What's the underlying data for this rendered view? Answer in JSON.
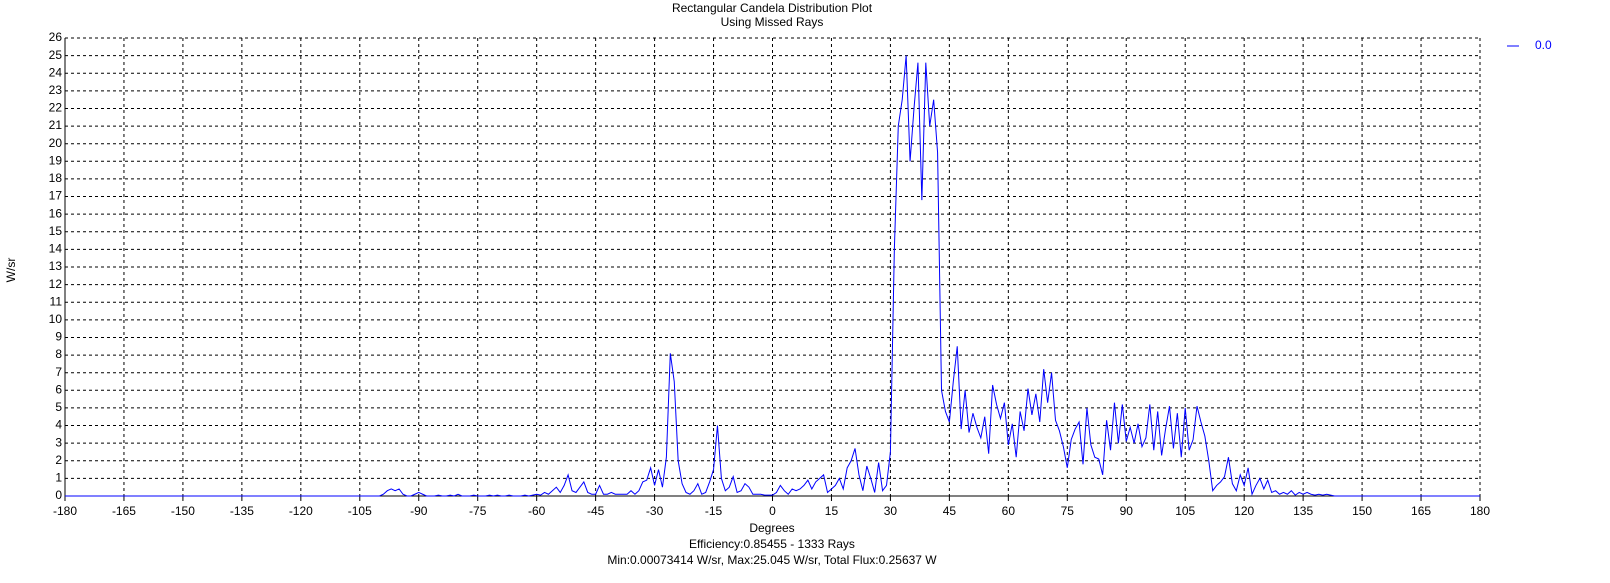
{
  "chart_data": {
    "type": "line",
    "title": "Rectangular Candela Distribution Plot",
    "subtitle": "Using Missed Rays",
    "x_label": "Degrees",
    "y_label": "W/sr",
    "footer": [
      "Efficiency:0.85455 - 1333 Rays",
      "Min:0.00073414 W/sr, Max:25.045 W/sr, Total Flux:0.25637 W"
    ],
    "grid": true,
    "legend": "right",
    "xlim": [
      -180,
      180
    ],
    "xticks": [
      -180,
      -165,
      -150,
      -135,
      -120,
      -105,
      -90,
      -75,
      -60,
      -45,
      -30,
      -15,
      0,
      15,
      30,
      45,
      60,
      75,
      90,
      105,
      120,
      135,
      150,
      165,
      180
    ],
    "ylim": [
      0,
      26
    ],
    "yticks": [
      0,
      1,
      2,
      3,
      4,
      5,
      6,
      7,
      8,
      9,
      10,
      11,
      12,
      13,
      14,
      15,
      16,
      17,
      18,
      19,
      20,
      21,
      22,
      23,
      24,
      25,
      26
    ],
    "x": [
      -180,
      -100,
      -99,
      -98,
      -97,
      -96,
      -95,
      -94,
      -93,
      -92,
      -91,
      -90,
      -89,
      -88,
      -87,
      -86,
      -85,
      -84,
      -83,
      -82,
      -81,
      -80,
      -79,
      -78,
      -77,
      -76,
      -75,
      -74,
      -73,
      -72,
      -71,
      -70,
      -69,
      -68,
      -67,
      -66,
      -65,
      -64,
      -63,
      -62,
      -61,
      -60,
      -59,
      -58,
      -57,
      -56,
      -55,
      -54,
      -53,
      -52,
      -51,
      -50,
      -49,
      -48,
      -47,
      -46,
      -45,
      -44,
      -43,
      -42,
      -41,
      -40,
      -39,
      -38,
      -37,
      -36,
      -35,
      -34,
      -33,
      -32,
      -31,
      -30,
      -29,
      -28,
      -27,
      -26,
      -25,
      -24,
      -23,
      -22,
      -21,
      -20,
      -19,
      -18,
      -17,
      -16,
      -15,
      -14,
      -13,
      -12,
      -11,
      -10,
      -9,
      -8,
      -7,
      -6,
      -5,
      -4,
      -3,
      -2,
      -1,
      0,
      1,
      2,
      3,
      4,
      5,
      6,
      7,
      8,
      9,
      10,
      11,
      12,
      13,
      14,
      15,
      16,
      17,
      18,
      19,
      20,
      21,
      22,
      23,
      24,
      25,
      26,
      27,
      28,
      29,
      30,
      31,
      32,
      33,
      34,
      35,
      36,
      37,
      38,
      39,
      40,
      41,
      42,
      43,
      44,
      45,
      46,
      47,
      48,
      49,
      50,
      51,
      52,
      53,
      54,
      55,
      56,
      57,
      58,
      59,
      60,
      61,
      62,
      63,
      64,
      65,
      66,
      67,
      68,
      69,
      70,
      71,
      72,
      73,
      74,
      75,
      76,
      77,
      78,
      79,
      80,
      81,
      82,
      83,
      84,
      85,
      86,
      87,
      88,
      89,
      90,
      91,
      92,
      93,
      94,
      95,
      96,
      97,
      98,
      99,
      100,
      101,
      102,
      103,
      104,
      105,
      106,
      107,
      108,
      109,
      110,
      111,
      112,
      113,
      114,
      115,
      116,
      117,
      118,
      119,
      120,
      121,
      122,
      123,
      124,
      125,
      126,
      127,
      128,
      129,
      130,
      131,
      132,
      133,
      134,
      135,
      136,
      137,
      138,
      139,
      140,
      141,
      142,
      143,
      144,
      145,
      146,
      147,
      148,
      149,
      150,
      180
    ],
    "series": [
      {
        "name": "0.0",
        "color": "#0000ff",
        "values": [
          0,
          0,
          0.1,
          0.3,
          0.4,
          0.3,
          0.4,
          0.1,
          0,
          0,
          0.1,
          0.2,
          0.1,
          0,
          0,
          0,
          0.05,
          0,
          0,
          0.05,
          0,
          0.1,
          0,
          0,
          0,
          0.05,
          0,
          0,
          0,
          0.05,
          0,
          0.05,
          0,
          0,
          0.05,
          0,
          0,
          0,
          0.05,
          0,
          0.05,
          0.1,
          0.05,
          0.2,
          0.1,
          0.3,
          0.5,
          0.2,
          0.6,
          1.2,
          0.3,
          0.2,
          0.5,
          0.8,
          0.2,
          0.1,
          0.1,
          0.6,
          0.1,
          0.1,
          0.2,
          0.1,
          0.1,
          0.1,
          0.1,
          0.3,
          0.1,
          0.3,
          0.8,
          0.9,
          1.6,
          0.6,
          1.5,
          0.5,
          2.2,
          8.1,
          6.5,
          2.0,
          0.7,
          0.2,
          0.1,
          0.3,
          0.7,
          0.1,
          0.2,
          0.8,
          1.5,
          4.0,
          1.0,
          0.3,
          0.5,
          1.1,
          0.2,
          0.3,
          0.7,
          0.5,
          0.1,
          0.1,
          0.1,
          0.05,
          0.05,
          0.05,
          0.2,
          0.6,
          0.3,
          0.1,
          0.4,
          0.3,
          0.4,
          0.6,
          0.9,
          0.4,
          0.8,
          1.0,
          1.2,
          0.2,
          0.4,
          0.6,
          1.0,
          0.4,
          1.6,
          2.0,
          2.7,
          1.2,
          0.3,
          1.7,
          1.0,
          0.2,
          1.9,
          0.3,
          0.6,
          2.5,
          14,
          21,
          22.5,
          25,
          19,
          22,
          24.6,
          16.8,
          24.6,
          21,
          22.5,
          19.5,
          6,
          4.8,
          4.2,
          6.5,
          8.5,
          3.8,
          6,
          3.6,
          4.7,
          3.9,
          3.3,
          4.5,
          2.4,
          6.3,
          5.2,
          4.4,
          5.3,
          2.9,
          4.1,
          2.2,
          4.8,
          3.7,
          6.1,
          4.6,
          5.8,
          4.2,
          7.2,
          5.3,
          7.0,
          4.3,
          3.7,
          2.8,
          1.6,
          3.2,
          3.8,
          4.2,
          1.8,
          5.0,
          2.9,
          2.2,
          2.1,
          1.2,
          4.3,
          2.6,
          5.3,
          3.0,
          5.2,
          3.1,
          3.9,
          3.0,
          4.1,
          2.8,
          3.3,
          5.2,
          2.6,
          4.8,
          2.3,
          3.8,
          5.1,
          2.7,
          4.7,
          2.2,
          5.0,
          2.6,
          3.2,
          5.1,
          4.2,
          3.4,
          2.0,
          0.3,
          0.6,
          0.8,
          1.1,
          2.2,
          0.7,
          0.3,
          1.2,
          0.6,
          1.6,
          0.1,
          0.6,
          1.0,
          0.4,
          0.9,
          0.2,
          0.3,
          0.1,
          0.2,
          0.1,
          0.3,
          0.05,
          0.2,
          0.1,
          0.2,
          0.1,
          0.05,
          0.1,
          0.05,
          0.1,
          0.05,
          0,
          0,
          0,
          0,
          0,
          0,
          0,
          0,
          0
        ]
      }
    ]
  }
}
